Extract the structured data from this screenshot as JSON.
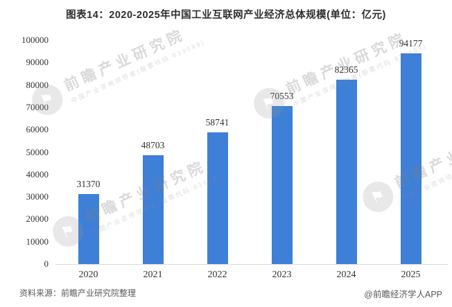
{
  "title": "图表14：2020-2025年中国工业互联网产业经济总体规模(单位：亿元)",
  "chart_data": {
    "type": "bar",
    "categories": [
      "2020",
      "2021",
      "2022",
      "2023",
      "2024",
      "2025"
    ],
    "values": [
      31370,
      48703,
      58741,
      70553,
      82365,
      94177
    ],
    "title": "图表14：2020-2025年中国工业互联网产业经济总体规模(单位：亿元)",
    "xlabel": "",
    "ylabel": "",
    "unit": "亿元",
    "ylim": [
      0,
      100000
    ],
    "ytick_step": 10000,
    "bar_color": "#3E7FD8",
    "grid": false,
    "legend": "none",
    "value_labels_shown": true
  },
  "watermark": {
    "brand": "前瞻产业研究院",
    "tagline": "中国产业咨询领导者(股票代码:839599)"
  },
  "footer": {
    "source": "资料来源：前瞻产业研究院整理",
    "credit": "@前瞻经济学人APP"
  }
}
